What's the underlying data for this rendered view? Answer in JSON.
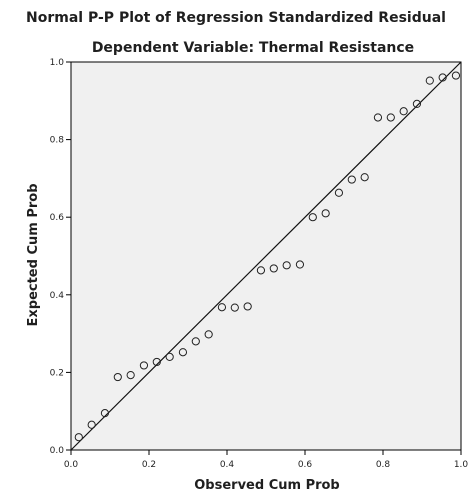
{
  "chart_data": {
    "type": "scatter",
    "title": "Normal P-P Plot of Regression Standardized Residual",
    "subtitle": "Dependent Variable: Thermal Resistance",
    "xlabel": "Observed Cum Prob",
    "ylabel": "Expected Cum Prob",
    "xlim": [
      0,
      1
    ],
    "ylim": [
      0,
      1
    ],
    "x_ticks": [
      "0.0",
      "0.2",
      "0.4",
      "0.6",
      "0.8",
      "1.0"
    ],
    "y_ticks": [
      "0.0",
      "0.2",
      "0.4",
      "0.6",
      "0.8",
      "1.0"
    ],
    "reference_line": [
      [
        0,
        0
      ],
      [
        1,
        1
      ]
    ],
    "grid": false,
    "colors": {
      "plot_background": "#f0f0f0",
      "points": "#222222",
      "line": "#111111",
      "frame": "#000000"
    },
    "points": [
      {
        "x": 0.02,
        "y": 0.033
      },
      {
        "x": 0.053,
        "y": 0.065
      },
      {
        "x": 0.087,
        "y": 0.095
      },
      {
        "x": 0.12,
        "y": 0.188
      },
      {
        "x": 0.153,
        "y": 0.193
      },
      {
        "x": 0.187,
        "y": 0.218
      },
      {
        "x": 0.22,
        "y": 0.227
      },
      {
        "x": 0.253,
        "y": 0.24
      },
      {
        "x": 0.287,
        "y": 0.252
      },
      {
        "x": 0.32,
        "y": 0.28
      },
      {
        "x": 0.353,
        "y": 0.298
      },
      {
        "x": 0.387,
        "y": 0.368
      },
      {
        "x": 0.42,
        "y": 0.367
      },
      {
        "x": 0.453,
        "y": 0.37
      },
      {
        "x": 0.487,
        "y": 0.463
      },
      {
        "x": 0.52,
        "y": 0.468
      },
      {
        "x": 0.553,
        "y": 0.476
      },
      {
        "x": 0.587,
        "y": 0.478
      },
      {
        "x": 0.62,
        "y": 0.6
      },
      {
        "x": 0.653,
        "y": 0.61
      },
      {
        "x": 0.687,
        "y": 0.663
      },
      {
        "x": 0.72,
        "y": 0.697
      },
      {
        "x": 0.753,
        "y": 0.703
      },
      {
        "x": 0.787,
        "y": 0.857
      },
      {
        "x": 0.82,
        "y": 0.857
      },
      {
        "x": 0.853,
        "y": 0.873
      },
      {
        "x": 0.887,
        "y": 0.892
      },
      {
        "x": 0.92,
        "y": 0.952
      },
      {
        "x": 0.953,
        "y": 0.96
      },
      {
        "x": 0.987,
        "y": 0.965
      }
    ]
  }
}
